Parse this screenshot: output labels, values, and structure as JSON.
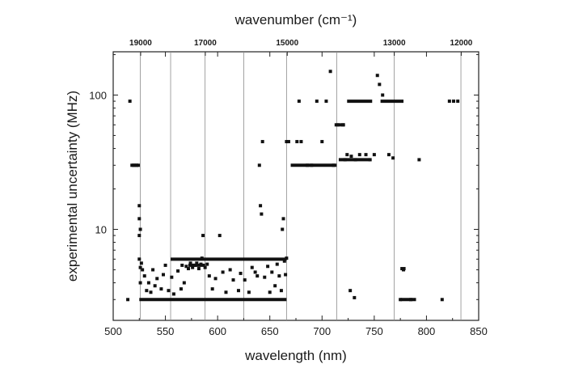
{
  "chart_data": {
    "type": "scatter",
    "title": "",
    "xlabel": "wavelength (nm)",
    "x2label": "wavenumber (cm⁻¹)",
    "ylabel": "experimental uncertainty (MHz)",
    "xlim": [
      500,
      850
    ],
    "ylim": [
      2.1,
      210
    ],
    "yscale": "log",
    "x_ticks": [
      "500",
      "550",
      "600",
      "650",
      "700",
      "750",
      "800",
      "850"
    ],
    "y_ticks": [
      "10",
      "100"
    ],
    "x2_ticks": [
      {
        "label": "19000",
        "wavelength_nm": 526.3
      },
      {
        "label": "17000",
        "wavelength_nm": 588.2
      },
      {
        "label": "15000",
        "wavelength_nm": 666.7
      },
      {
        "label": "13000",
        "wavelength_nm": 769.2
      },
      {
        "label": "12000",
        "wavelength_nm": 833.3
      }
    ],
    "vertical_gridlines_nm": [
      526,
      555,
      588,
      625,
      666,
      714,
      769,
      833
    ],
    "marker_color": "#111111",
    "series": [
      {
        "points": [
          [
            514,
            3
          ],
          [
            516,
            90
          ],
          [
            518,
            30
          ],
          [
            520,
            30
          ],
          [
            522,
            30
          ],
          [
            524,
            30
          ],
          [
            525,
            15
          ],
          [
            525,
            12
          ],
          [
            525,
            9
          ],
          [
            526,
            10
          ],
          [
            525,
            6
          ],
          [
            526,
            4
          ],
          [
            526,
            5.2
          ],
          [
            527,
            5.6
          ],
          [
            528,
            5
          ],
          [
            530,
            4.5
          ],
          [
            532,
            3.5
          ],
          [
            534,
            4
          ],
          [
            536,
            3.4
          ],
          [
            538,
            5
          ],
          [
            540,
            3.8
          ],
          [
            542,
            4.3
          ],
          [
            546,
            3.6
          ],
          [
            548,
            4.6
          ],
          [
            550,
            5.4
          ],
          [
            553,
            3.5
          ],
          [
            556,
            4.4
          ],
          [
            558,
            3.3
          ],
          [
            562,
            4.9
          ],
          [
            565,
            3.6
          ],
          [
            566,
            5.4
          ],
          [
            568,
            4
          ],
          [
            570,
            5.3
          ],
          [
            572,
            5.1
          ],
          [
            574,
            5.6
          ],
          [
            576,
            5.2
          ],
          [
            578,
            5.4
          ],
          [
            580,
            5.6
          ],
          [
            582,
            5.1
          ],
          [
            584,
            5.5
          ],
          [
            585,
            6.1
          ],
          [
            586,
            9
          ],
          [
            588,
            5.2
          ],
          [
            590,
            5.5
          ],
          [
            592,
            4.5
          ],
          [
            595,
            3.6
          ],
          [
            598,
            4.3
          ],
          [
            602,
            9
          ],
          [
            605,
            4.8
          ],
          [
            608,
            3.4
          ],
          [
            612,
            5
          ],
          [
            615,
            4.2
          ],
          [
            620,
            3.5
          ],
          [
            622,
            4.7
          ],
          [
            626,
            4.2
          ],
          [
            630,
            3.4
          ],
          [
            633,
            5.2
          ],
          [
            636,
            4.8
          ],
          [
            638,
            4.5
          ],
          [
            640,
            30
          ],
          [
            641,
            15
          ],
          [
            642,
            13
          ],
          [
            643,
            45
          ],
          [
            645,
            4.4
          ],
          [
            648,
            5.3
          ],
          [
            650,
            3.4
          ],
          [
            652,
            4.8
          ],
          [
            655,
            3.8
          ],
          [
            657,
            5.5
          ],
          [
            659,
            4.5
          ],
          [
            661,
            3.5
          ],
          [
            662,
            10
          ],
          [
            663,
            12
          ],
          [
            664,
            5.8
          ],
          [
            665,
            4.6
          ],
          [
            666,
            6.1
          ],
          [
            666,
            45
          ],
          [
            668,
            45
          ],
          [
            676,
            45
          ],
          [
            678,
            90
          ],
          [
            680,
            45
          ],
          [
            686,
            30
          ],
          [
            690,
            30
          ],
          [
            695,
            90
          ],
          [
            700,
            45
          ],
          [
            704,
            90
          ],
          [
            708,
            150
          ],
          [
            711,
            30
          ],
          [
            715,
            60
          ],
          [
            720,
            60
          ],
          [
            722,
            33
          ],
          [
            724,
            36
          ],
          [
            728,
            35
          ],
          [
            732,
            33
          ],
          [
            736,
            36
          ],
          [
            742,
            36
          ],
          [
            746,
            33
          ],
          [
            750,
            36
          ],
          [
            753,
            140
          ],
          [
            755,
            120
          ],
          [
            758,
            100
          ],
          [
            764,
            36
          ],
          [
            768,
            34
          ],
          [
            775,
            3
          ],
          [
            778,
            5
          ],
          [
            785,
            3
          ],
          [
            793,
            33
          ],
          [
            815,
            3
          ],
          [
            822,
            90
          ],
          [
            826,
            90
          ],
          [
            830,
            90
          ],
          [
            727,
            3.5
          ],
          [
            731,
            3.1
          ]
        ],
        "horizontal_runs": [
          {
            "from": 518,
            "to": 524,
            "y": 30
          },
          {
            "from": 525,
            "to": 666,
            "y": 3.0
          },
          {
            "from": 555,
            "to": 666,
            "y": 6.0
          },
          {
            "from": 572,
            "to": 588,
            "y": 5.4
          },
          {
            "from": 670,
            "to": 714,
            "y": 30
          },
          {
            "from": 712,
            "to": 722,
            "y": 60
          },
          {
            "from": 716,
            "to": 746,
            "y": 33
          },
          {
            "from": 724,
            "to": 748,
            "y": 90
          },
          {
            "from": 756,
            "to": 778,
            "y": 90
          },
          {
            "from": 775,
            "to": 780,
            "y": 5.1
          },
          {
            "from": 775,
            "to": 790,
            "y": 3.0
          }
        ]
      }
    ]
  }
}
